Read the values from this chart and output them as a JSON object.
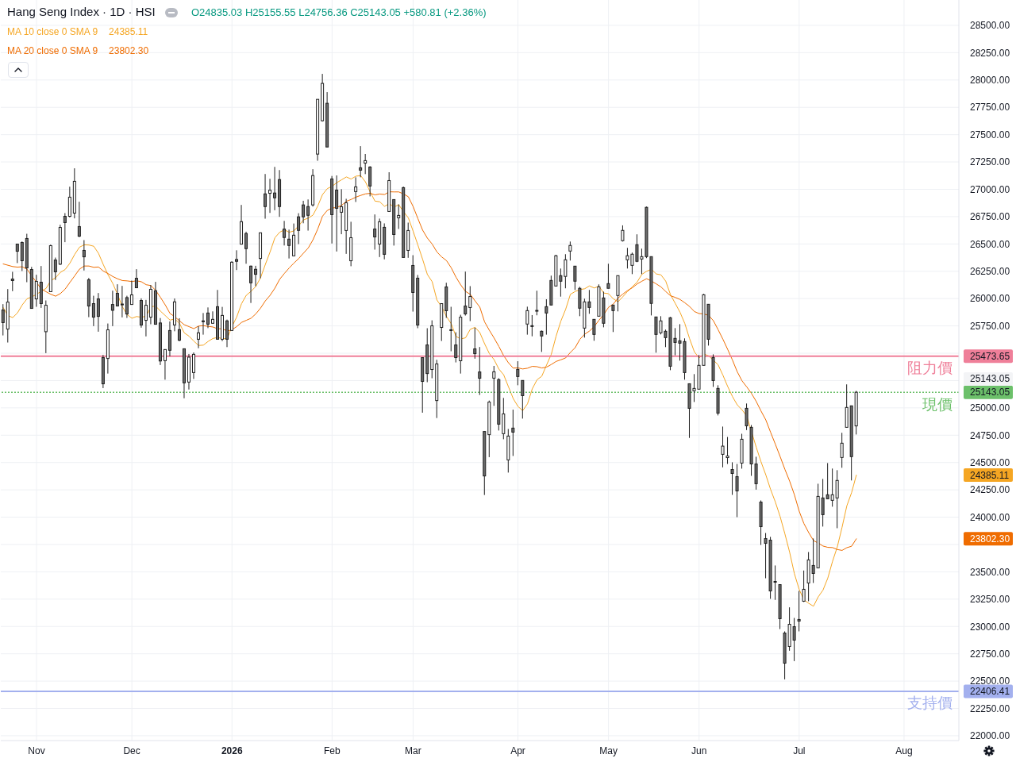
{
  "chart_data": {
    "type": "candlestick",
    "title": "Hang Seng Index · 1D · HSI",
    "subtitle": "O24835.03 H25155.55 L24756.36 C25143.05 +580.81 (+2.36%)",
    "categories": [
      null,
      null,
      null,
      null,
      null,
      null,
      null,
      "Nov",
      null,
      null,
      null,
      null,
      null,
      null,
      null,
      null,
      null,
      null,
      null,
      null,
      null,
      null,
      null,
      null,
      null,
      null,
      null,
      "Dec",
      null,
      null,
      null,
      null,
      null,
      null,
      null,
      null,
      null,
      null,
      null,
      null,
      null,
      null,
      null,
      null,
      null,
      null,
      null,
      null,
      "2026",
      null,
      null,
      null,
      null,
      null,
      null,
      null,
      null,
      null,
      null,
      null,
      null,
      null,
      null,
      null,
      null,
      null,
      null,
      null,
      null,
      "Feb",
      null,
      null,
      null,
      null,
      null,
      null,
      null,
      null,
      null,
      null,
      null,
      null,
      null,
      null,
      null,
      null,
      "Mar",
      null,
      null,
      null,
      null,
      null,
      null,
      null,
      null,
      null,
      null,
      null,
      null,
      null,
      null,
      null,
      null,
      null,
      null,
      null,
      null,
      null,
      "Apr",
      null,
      null,
      null,
      null,
      null,
      null,
      null,
      null,
      null,
      null,
      null,
      null,
      null,
      null,
      null,
      null,
      null,
      null,
      "May",
      null,
      null,
      null,
      null,
      null,
      null,
      null,
      null,
      null,
      null,
      null,
      null,
      null,
      null,
      null,
      null,
      null,
      null,
      "Jun",
      null,
      null,
      null,
      null,
      null,
      null,
      null,
      null,
      null,
      null,
      null,
      null,
      null,
      null,
      null,
      null,
      null,
      null,
      null,
      null,
      "Jul",
      null,
      null,
      null,
      null,
      null,
      null,
      null,
      null,
      null,
      null,
      null,
      null,
      null,
      null,
      null,
      null,
      null,
      null,
      null,
      null,
      null,
      "Aug",
      null,
      null,
      null,
      null,
      null,
      null,
      null,
      null,
      null,
      null,
      null
    ],
    "ohlc": [
      [
        25896,
        25949,
        25663,
        25780
      ],
      [
        25721,
        26087,
        25598,
        25968
      ],
      [
        26179,
        26245,
        26068,
        26165
      ],
      [
        26499,
        26499,
        26325,
        26433
      ],
      [
        26513,
        26523,
        26252,
        26346
      ],
      [
        26550,
        26593,
        26150,
        26281
      ],
      [
        26266,
        26290,
        25910,
        25910
      ],
      [
        25997,
        26218,
        25925,
        26157
      ],
      [
        26150,
        26298,
        25915,
        25954
      ],
      [
        25697,
        25983,
        25501,
        25939
      ],
      [
        26063,
        26494,
        26063,
        26484
      ],
      [
        26353,
        26375,
        26170,
        26245
      ],
      [
        26315,
        26676,
        26307,
        26651
      ],
      [
        26753,
        26782,
        26516,
        26695
      ],
      [
        26753,
        27024,
        26743,
        26928
      ],
      [
        26782,
        27192,
        26734,
        27073
      ],
      [
        26659,
        26886,
        26562,
        26571
      ],
      [
        26441,
        26535,
        26257,
        26382
      ],
      [
        26172,
        26189,
        25830,
        25932
      ],
      [
        25954,
        26026,
        25748,
        25830
      ],
      [
        25997,
        26051,
        25697,
        25837
      ],
      [
        25460,
        25484,
        25181,
        25220
      ],
      [
        25452,
        25772,
        25314,
        25714
      ],
      [
        25946,
        26072,
        25748,
        25893
      ],
      [
        26048,
        26131,
        25930,
        25932
      ],
      [
        25950,
        26116,
        25828,
        25945
      ],
      [
        26009,
        26026,
        25823,
        25859
      ],
      [
        25946,
        26165,
        25946,
        26034
      ],
      [
        26186,
        26269,
        26097,
        26099
      ],
      [
        25983,
        26002,
        25734,
        25758
      ],
      [
        25801,
        25988,
        25654,
        25939
      ],
      [
        25830,
        26124,
        25765,
        26085
      ],
      [
        26072,
        26153,
        25765,
        25765
      ],
      [
        25777,
        25822,
        25392,
        25429
      ],
      [
        25432,
        25534,
        25258,
        25534
      ],
      [
        25708,
        25791,
        25471,
        25527
      ],
      [
        25759,
        26001,
        25701,
        25970
      ],
      [
        25716,
        25820,
        25609,
        25619
      ],
      [
        25541,
        25541,
        25088,
        25229
      ],
      [
        25236,
        25493,
        25168,
        25464
      ],
      [
        25323,
        25507,
        25265,
        25490
      ],
      [
        25628,
        25747,
        25546,
        25687
      ],
      [
        25796,
        25868,
        25670,
        25791
      ],
      [
        25868,
        25919,
        25730,
        25766
      ],
      [
        25774,
        25883,
        25771,
        25810
      ],
      [
        25926,
        26079,
        25628,
        25628
      ],
      [
        25628,
        25924,
        25611,
        25846
      ],
      [
        25796,
        25808,
        25556,
        25628
      ],
      [
        25708,
        26341,
        25708,
        26333
      ],
      [
        26358,
        26442,
        26261,
        26341
      ],
      [
        26498,
        26857,
        26498,
        26704
      ],
      [
        26595,
        26612,
        26319,
        26457
      ],
      [
        26297,
        26302,
        25960,
        26144
      ],
      [
        26268,
        26300,
        26113,
        26222
      ],
      [
        26367,
        26602,
        26186,
        26602
      ],
      [
        26958,
        27140,
        26731,
        26842
      ],
      [
        26963,
        27096,
        26784,
        26992
      ],
      [
        26966,
        27205,
        26808,
        26922
      ],
      [
        27089,
        27176,
        26748,
        26842
      ],
      [
        26636,
        26711,
        26486,
        26559
      ],
      [
        26544,
        26631,
        26367,
        26486
      ],
      [
        26391,
        26687,
        26391,
        26580
      ],
      [
        26748,
        26781,
        26498,
        26624
      ],
      [
        26857,
        26895,
        26689,
        26748
      ],
      [
        26842,
        26907,
        26622,
        26762
      ],
      [
        26857,
        27184,
        26842,
        27126
      ],
      [
        27322,
        27823,
        27261,
        27823
      ],
      [
        27627,
        28056,
        27620,
        27969
      ],
      [
        27787,
        27889,
        27387,
        27387
      ],
      [
        27095,
        27122,
        26504,
        26768
      ],
      [
        26993,
        27127,
        26431,
        26826
      ],
      [
        26790,
        27001,
        26589,
        26841
      ],
      [
        26623,
        26913,
        26409,
        26877
      ],
      [
        26346,
        26703,
        26296,
        26557
      ],
      [
        26979,
        27110,
        26884,
        27022
      ],
      [
        27197,
        27395,
        27110,
        27175
      ],
      [
        27240,
        27323,
        27139,
        27262
      ],
      [
        27204,
        27211,
        26935,
        27030
      ],
      [
        26637,
        26770,
        26448,
        26564
      ],
      [
        26499,
        26732,
        26380,
        26703
      ],
      [
        26652,
        26688,
        26359,
        26405
      ],
      [
        26797,
        27156,
        26797,
        27080
      ],
      [
        26906,
        26906,
        26485,
        26586
      ],
      [
        26739,
        26862,
        26637,
        26761
      ],
      [
        27015,
        27025,
        26376,
        26376
      ],
      [
        26441,
        26695,
        26373,
        26623
      ],
      [
        26303,
        26397,
        25881,
        26056
      ],
      [
        26187,
        26216,
        25729,
        25758
      ],
      [
        25460,
        25460,
        24956,
        25242
      ],
      [
        25576,
        25729,
        25235,
        25314
      ],
      [
        25351,
        25801,
        25271,
        25751
      ],
      [
        25067,
        25440,
        24907,
        25402
      ],
      [
        25736,
        25954,
        25612,
        25954
      ],
      [
        26107,
        26145,
        25823,
        25889
      ],
      [
        25715,
        25925,
        25518,
        25710
      ],
      [
        25576,
        25692,
        25416,
        25460
      ],
      [
        25431,
        25852,
        25314,
        25830
      ],
      [
        25932,
        26247,
        25845,
        25860
      ],
      [
        25918,
        26114,
        25794,
        26019
      ],
      [
        25540,
        25734,
        25450,
        25496
      ],
      [
        25329,
        25557,
        25118,
        25271
      ],
      [
        24784,
        24784,
        24203,
        24377
      ],
      [
        24755,
        25067,
        24549,
        25053
      ],
      [
        25272,
        25384,
        25018,
        25330
      ],
      [
        25258,
        25272,
        24793,
        24851
      ],
      [
        24764,
        25091,
        24713,
        24945
      ],
      [
        24524,
        24807,
        24408,
        24742
      ],
      [
        24815,
        24984,
        24560,
        24778
      ],
      [
        25352,
        25427,
        25207,
        25287
      ],
      [
        25251,
        25251,
        24902,
        25112
      ],
      [
        25767,
        25926,
        25670,
        25890
      ],
      [
        25752,
        25849,
        25655,
        25748
      ],
      [
        25892,
        26072,
        25847,
        25888
      ],
      [
        25701,
        25708,
        25512,
        25658
      ],
      [
        25926,
        25994,
        25670,
        25868
      ],
      [
        26166,
        26210,
        25941,
        25941
      ],
      [
        26115,
        26401,
        26115,
        26392
      ],
      [
        26210,
        26275,
        26018,
        26159
      ],
      [
        26203,
        26406,
        26094,
        26355
      ],
      [
        26435,
        26522,
        26348,
        26486
      ],
      [
        26297,
        26297,
        26079,
        26159
      ],
      [
        26094,
        26108,
        25839,
        25912
      ],
      [
        25730,
        25999,
        25643,
        25970
      ],
      [
        25970,
        26079,
        25861,
        25919
      ],
      [
        25810,
        25810,
        25614,
        25672
      ],
      [
        25839,
        26130,
        25839,
        26108
      ],
      [
        26006,
        26064,
        25737,
        25774
      ],
      [
        26137,
        26319,
        26094,
        26094
      ],
      [
        25941,
        25941,
        25694,
        25890
      ],
      [
        26028,
        26210,
        25883,
        26210
      ],
      [
        26530,
        26670,
        26522,
        26624
      ],
      [
        26355,
        26464,
        26275,
        26392
      ],
      [
        26304,
        26421,
        26224,
        26406
      ],
      [
        26493,
        26588,
        26333,
        26341
      ],
      [
        26362,
        26457,
        26224,
        26384
      ],
      [
        26835,
        26842,
        26370,
        26384
      ],
      [
        26384,
        26384,
        25846,
        25956
      ],
      [
        25832,
        25832,
        25505,
        25672
      ],
      [
        25687,
        25839,
        25672,
        25796
      ],
      [
        25701,
        25716,
        25556,
        25643
      ],
      [
        25825,
        25832,
        25345,
        25381
      ],
      [
        25636,
        25730,
        25481,
        25599
      ],
      [
        25614,
        25766,
        25432,
        25592
      ],
      [
        25607,
        25636,
        25258,
        25323
      ],
      [
        25221,
        25221,
        24725,
        24996
      ],
      [
        25156,
        25309,
        25054,
        25178
      ],
      [
        25171,
        25483,
        25171,
        25389
      ],
      [
        25389,
        26043,
        25389,
        26035
      ],
      [
        25948,
        25948,
        25570,
        25628
      ],
      [
        25461,
        25490,
        25192,
        25250
      ],
      [
        25178,
        25207,
        24931,
        24952
      ],
      [
        24575,
        24829,
        24456,
        24650
      ],
      [
        24545,
        24734,
        24487,
        24560
      ],
      [
        24436,
        24502,
        24204,
        24400
      ],
      [
        24371,
        24487,
        24000,
        24240
      ],
      [
        24495,
        24763,
        24444,
        24713
      ],
      [
        24996,
        25040,
        24797,
        24836
      ],
      [
        24822,
        24843,
        24378,
        24487
      ],
      [
        24487,
        24553,
        24252,
        24306
      ],
      [
        24138,
        24153,
        23746,
        23913
      ],
      [
        23804,
        23855,
        23441,
        23761
      ],
      [
        23790,
        23820,
        23253,
        23325
      ],
      [
        23412,
        23558,
        23243,
        23408
      ],
      [
        23383,
        23383,
        22976,
        23071
      ],
      [
        22940,
        22955,
        22516,
        22664
      ],
      [
        22817,
        23175,
        22778,
        23020
      ],
      [
        22998,
        23078,
        22683,
        22875
      ],
      [
        23064,
        23325,
        22955,
        23049
      ],
      [
        23231,
        23512,
        23224,
        23340
      ],
      [
        23398,
        23681,
        23231,
        23609
      ],
      [
        23558,
        23805,
        23398,
        23485
      ],
      [
        23536,
        24306,
        23536,
        24190
      ],
      [
        24176,
        24350,
        23914,
        24023
      ],
      [
        24205,
        24495,
        24168,
        24168
      ],
      [
        24154,
        24445,
        24096,
        24205
      ],
      [
        24176,
        24430,
        23899,
        24336
      ],
      [
        24546,
        24772,
        24452,
        24677
      ],
      [
        24822,
        25215,
        24822,
        25004
      ],
      [
        25019,
        25019,
        24336,
        24554
      ],
      [
        24835.03,
        25155.55,
        24756.36,
        25143.05
      ],
      null,
      null,
      null,
      null,
      null,
      null,
      null,
      null,
      null,
      null,
      null,
      null,
      null,
      null,
      null,
      null,
      null,
      null,
      null,
      null,
      null
    ],
    "colors": [
      "#6b6b6b",
      "#ffffff",
      "#6b6b6b",
      "#6b6b6b",
      "#6b6b6b",
      "#6b6b6b",
      "#6b6b6b",
      "#ffffff",
      "#6b6b6b",
      "#ffffff",
      "#ffffff",
      "#6b6b6b",
      "#ffffff",
      "#6b6b6b",
      "#ffffff",
      "#ffffff",
      "#6b6b6b",
      "#6b6b6b",
      "#6b6b6b",
      "#6b6b6b",
      "#6b6b6b",
      "#6b6b6b",
      "#ffffff",
      "#6b6b6b",
      "#6b6b6b",
      "#6b6b6b",
      "#6b6b6b",
      "#ffffff",
      "#6b6b6b",
      "#6b6b6b",
      "#ffffff",
      "#ffffff",
      "#6b6b6b",
      "#6b6b6b",
      "#ffffff",
      "#6b6b6b",
      "#ffffff",
      "#6b6b6b",
      "#6b6b6b",
      "#ffffff",
      "#ffffff",
      "#ffffff",
      "#6b6b6b",
      "#6b6b6b",
      "#ffffff",
      "#6b6b6b",
      "#ffffff",
      "#6b6b6b",
      "#ffffff",
      "#6b6b6b",
      "#ffffff",
      "#6b6b6b",
      "#6b6b6b",
      "#6b6b6b",
      "#ffffff",
      "#6b6b6b",
      "#ffffff",
      "#6b6b6b",
      "#6b6b6b",
      "#6b6b6b",
      "#6b6b6b",
      "#ffffff",
      "#6b6b6b",
      "#6b6b6b",
      "#6b6b6b",
      "#ffffff",
      "#ffffff",
      "#ffffff",
      "#6b6b6b",
      "#6b6b6b",
      "#6b6b6b",
      "#ffffff",
      "#ffffff",
      "#ffffff",
      "#ffffff",
      "#6b6b6b",
      "#ffffff",
      "#6b6b6b",
      "#6b6b6b",
      "#ffffff",
      "#6b6b6b",
      "#ffffff",
      "#6b6b6b",
      "#ffffff",
      "#6b6b6b",
      "#ffffff",
      "#6b6b6b",
      "#6b6b6b",
      "#6b6b6b",
      "#6b6b6b",
      "#ffffff",
      "#ffffff",
      "#ffffff",
      "#6b6b6b",
      "#6b6b6b",
      "#6b6b6b",
      "#ffffff",
      "#6b6b6b",
      "#ffffff",
      "#6b6b6b",
      "#6b6b6b",
      "#6b6b6b",
      "#ffffff",
      "#ffffff",
      "#6b6b6b",
      "#ffffff",
      "#ffffff",
      "#6b6b6b",
      "#6b6b6b",
      "#6b6b6b",
      "#ffffff",
      "#6b6b6b",
      "#6b6b6b",
      "#6b6b6b",
      "#6b6b6b",
      "#6b6b6b",
      "#ffffff",
      "#6b6b6b",
      "#ffffff",
      "#ffffff",
      "#6b6b6b",
      "#6b6b6b",
      "#ffffff",
      "#6b6b6b",
      "#6b6b6b",
      "#ffffff",
      "#6b6b6b",
      "#6b6b6b",
      "#6b6b6b",
      "#ffffff",
      "#ffffff",
      "#ffffff",
      "#ffffff",
      "#6b6b6b",
      "#ffffff",
      "#6b6b6b",
      "#6b6b6b",
      "#6b6b6b",
      "#ffffff",
      "#6b6b6b",
      "#6b6b6b",
      "#6b6b6b",
      "#6b6b6b",
      "#6b6b6b",
      "#6b6b6b",
      "#ffffff",
      "#ffffff",
      "#ffffff",
      "#6b6b6b",
      "#6b6b6b",
      "#6b6b6b",
      "#ffffff",
      "#ffffff",
      "#6b6b6b",
      "#6b6b6b",
      "#ffffff",
      "#6b6b6b",
      "#6b6b6b",
      "#6b6b6b",
      "#6b6b6b",
      "#6b6b6b",
      "#6b6b6b",
      "#6b6b6b",
      "#6b6b6b",
      "#6b6b6b",
      "#ffffff",
      "#6b6b6b",
      "#6b6b6b",
      "#ffffff",
      "#ffffff",
      "#6b6b6b",
      "#ffffff",
      "#6b6b6b",
      "#6b6b6b",
      "#ffffff",
      "#ffffff",
      "#ffffff",
      "#ffffff",
      "#6b6b6b",
      "#ffffff",
      null,
      null,
      null,
      null,
      null,
      null,
      null,
      null,
      null,
      null,
      null,
      null,
      null,
      null,
      null,
      null,
      null,
      null,
      null,
      null,
      null
    ],
    "series": [
      {
        "name": "MA 10 close 0 SMA 9",
        "type": "line",
        "color": "#f5a623",
        "values": [
          25918,
          25845,
          25826,
          25869,
          25942,
          25998,
          26015,
          26039,
          26068,
          26093,
          26164,
          26191,
          26240,
          26266,
          26324,
          26404,
          26470,
          26492,
          26490,
          26479,
          26414,
          26312,
          26218,
          26138,
          26038,
          25926,
          25854,
          25820,
          25836,
          25829,
          25839,
          25926,
          25931,
          25885,
          25845,
          25803,
          25814,
          25773,
          25686,
          25656,
          25611,
          25571,
          25574,
          25608,
          25635,
          25645,
          25633,
          25634,
          25744,
          25832,
          25953,
          26030,
          26066,
          26111,
          26191,
          26312,
          26427,
          26556,
          26607,
          26629,
          26607,
          26619,
          26667,
          26720,
          26736,
          26764,
          26847,
          26952,
          27006,
          27027,
          27061,
          27087,
          27113,
          27094,
          27120,
          27125,
          27068,
          26975,
          26892,
          26886,
          26844,
          26868,
          26838,
          26859,
          26794,
          26739,
          26618,
          26491,
          26359,
          26220,
          26155,
          25987,
          25924,
          25837,
          25770,
          25654,
          25631,
          25641,
          25719,
          25737,
          25689,
          25587,
          25497,
          25441,
          25355,
          25303,
          25194,
          25086,
          25013,
          24975,
          25037,
          25174,
          25257,
          25290,
          25392,
          25491,
          25656,
          25794,
          25901,
          26039,
          26065,
          26082,
          26090,
          26116,
          26097,
          26113,
          26051,
          26045,
          25998,
          25971,
          26017,
          26065,
          26109,
          26151,
          26222,
          26250,
          26268,
          26226,
          26217,
          26160,
          26036,
          25956,
          25875,
          25773,
          25634,
          25514,
          25457,
          25493,
          25476,
          25437,
          25394,
          25299,
          25196,
          25104,
          25028,
          24982,
          24926,
          null,
          24639,
          24506,
          24387,
          24254,
          24139,
          24006,
          23848,
          23679,
          23483,
          23339,
          23243,
          23212,
          23185,
          23271,
          23333,
          23442,
          23596,
          23728,
          23908,
          24104,
          24225,
          24385.11,
          null,
          null,
          null,
          null,
          null,
          null,
          null,
          null,
          null,
          null,
          null,
          null,
          null,
          null,
          null,
          null,
          null,
          null,
          null,
          null,
          null
        ]
      },
      {
        "name": "MA 20 close 0 SMA 9",
        "type": "line",
        "color": "#ef6c00",
        "values": [
          26317,
          26305,
          26293,
          26288,
          26291,
          26269,
          26208,
          26148,
          26087,
          26063,
          26039,
          26022,
          26046,
          26087,
          26148,
          26208,
          26269,
          26298,
          26298,
          26286,
          26289,
          26252,
          26229,
          26202,
          26181,
          26165,
          26162,
          26156,
          26163,
          26154,
          26127,
          26119,
          26075,
          26011,
          25942,
          25864,
          25834,
          25796,
          25761,
          25743,
          25725,
          25749,
          25752,
          25746,
          25740,
          25724,
          25724,
          25703,
          25715,
          25744,
          25782,
          25801,
          25820,
          25860,
          25913,
          25979,
          26030,
          26095,
          26176,
          26230,
          26280,
          26325,
          26366,
          26416,
          26463,
          26538,
          26637,
          26754,
          26807,
          26828,
          26834,
          26853,
          26890,
          26907,
          26928,
          26944,
          26958,
          26963,
          26949,
          26957,
          26952,
          26977,
          26976,
          26976,
          26957,
          26932,
          26843,
          26733,
          26626,
          26553,
          26499,
          26427,
          26381,
          26348,
          26282,
          26196,
          26125,
          26066,
          26039,
          25979,
          25922,
          25787,
          25710,
          25639,
          25562,
          25478,
          25413,
          25364,
          25366,
          25356,
          25363,
          25380,
          25377,
          25365,
          25373,
          25397,
          25425,
          25440,
          25457,
          25507,
          25551,
          25628,
          25674,
          25703,
          25744,
          25802,
          25854,
          25920,
          25950,
          26005,
          26041,
          26074,
          26099,
          26134,
          26159,
          26182,
          26160,
          26135,
          26107,
          26065,
          26026,
          26011,
          25992,
          25962,
          25928,
          25882,
          25863,
          25860,
          25846,
          25798,
          25715,
          25628,
          25535,
          25438,
          25331,
          25248,
          25192,
          25132,
          25058,
          24971,
          24890,
          24777,
          24668,
          24555,
          24438,
          24330,
          24205,
          24055,
          23941,
          23859,
          23786,
          23763,
          23736,
          23724,
          23722,
          23704,
          23696,
          23721,
          23734,
          23802.3,
          null,
          null,
          null,
          null,
          null,
          null,
          null,
          null,
          null,
          null,
          null,
          null,
          null,
          null,
          null,
          null,
          null,
          null,
          null,
          null,
          null
        ]
      }
    ],
    "ylim": [
      21956,
      28732
    ],
    "yticks": [
      {
        "value": 22000,
        "label": "22000.00"
      },
      {
        "value": 22250,
        "label": "22250.00"
      },
      {
        "value": 22406.41,
        "label": "22406.41"
      },
      {
        "value": 22500,
        "label": "22500.00"
      },
      {
        "value": 22750,
        "label": "22750.00"
      },
      {
        "value": 23000,
        "label": "23000.00"
      },
      {
        "value": 23250,
        "label": "23250.00"
      },
      {
        "value": 23500,
        "label": "23500.00"
      },
      {
        "value": 23750,
        "label": null
      },
      {
        "value": 23802.3,
        "label": "23802.30"
      },
      {
        "value": 24000,
        "label": "24000.00"
      },
      {
        "value": 24250,
        "label": "24250.00"
      },
      {
        "value": 24385.11,
        "label": "24385.11"
      },
      {
        "value": 24500,
        "label": "24500.00"
      },
      {
        "value": 24750,
        "label": "24750.00"
      },
      {
        "value": 25000,
        "label": "25000.00"
      },
      {
        "value": 25143.05,
        "label": "25143.05"
      },
      {
        "value": 25250,
        "label": null
      },
      {
        "value": 25473.65,
        "label": "25473.65"
      },
      {
        "value": 25500,
        "label": null
      },
      {
        "value": 25750,
        "label": "25750.00"
      },
      {
        "value": 26000,
        "label": "26000.00"
      },
      {
        "value": 26250,
        "label": "26250.00"
      },
      {
        "value": 26500,
        "label": "26500.00"
      },
      {
        "value": 26750,
        "label": "26750.00"
      },
      {
        "value": 27000,
        "label": "27000.00"
      },
      {
        "value": 27250,
        "label": "27250.00"
      },
      {
        "value": 27500,
        "label": "27500.00"
      },
      {
        "value": 27750,
        "label": "27750.00"
      },
      {
        "value": 28000,
        "label": "28000.00"
      },
      {
        "value": 28250,
        "label": "28250.00"
      },
      {
        "value": 28500,
        "label": "28500.00"
      }
    ],
    "ref_lines": [
      {
        "axis": "y",
        "value": 25473.65,
        "label": "阻力價",
        "color": "#ef7f99"
      },
      {
        "axis": "y",
        "value": 25143.05,
        "label": "現價",
        "color": "#6cc06a",
        "line_style": "dotted"
      },
      {
        "axis": "y",
        "value": 22406.41,
        "label": "支持價",
        "color": "#a3b0ee"
      }
    ],
    "annotations": [
      "25143.05"
    ],
    "grid": true,
    "legend": "top left",
    "marker": "none"
  }
}
